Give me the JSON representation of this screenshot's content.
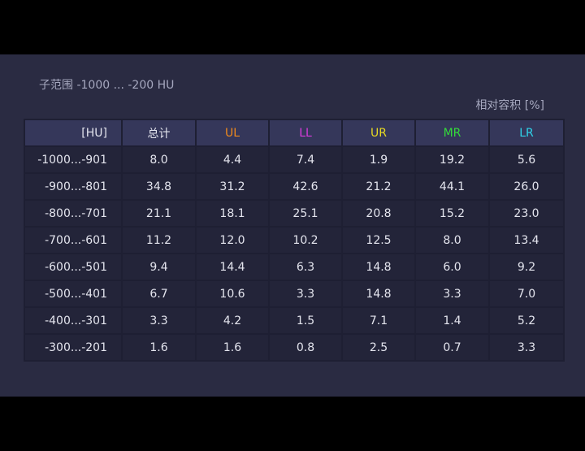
{
  "subrange_label": "子范围 -1000 ... -200 HU",
  "unit_caption": "相对容积 [%]",
  "table": {
    "headers": {
      "range": "[HU]",
      "total": "总计",
      "ul": "UL",
      "ll": "LL",
      "ur": "UR",
      "mr": "MR",
      "lr": "LR"
    },
    "header_colors": {
      "range": "#e4e5ee",
      "total": "#e4e5ee",
      "ul": "#f08a1c",
      "ll": "#d93cdc",
      "ur": "#e8da22",
      "mr": "#34d93a",
      "lr": "#2fd3ea"
    },
    "rows": [
      {
        "range": "-1000...-901",
        "total": "8.0",
        "ul": "4.4",
        "ll": "7.4",
        "ur": "1.9",
        "mr": "19.2",
        "lr": "5.6"
      },
      {
        "range": "-900...-801",
        "total": "34.8",
        "ul": "31.2",
        "ll": "42.6",
        "ur": "21.2",
        "mr": "44.1",
        "lr": "26.0"
      },
      {
        "range": "-800...-701",
        "total": "21.1",
        "ul": "18.1",
        "ll": "25.1",
        "ur": "20.8",
        "mr": "15.2",
        "lr": "23.0"
      },
      {
        "range": "-700...-601",
        "total": "11.2",
        "ul": "12.0",
        "ll": "10.2",
        "ur": "12.5",
        "mr": "8.0",
        "lr": "13.4"
      },
      {
        "range": "-600...-501",
        "total": "9.4",
        "ul": "14.4",
        "ll": "6.3",
        "ur": "14.8",
        "mr": "6.0",
        "lr": "9.2"
      },
      {
        "range": "-500...-401",
        "total": "6.7",
        "ul": "10.6",
        "ll": "3.3",
        "ur": "14.8",
        "mr": "3.3",
        "lr": "7.0"
      },
      {
        "range": "-400...-301",
        "total": "3.3",
        "ul": "4.2",
        "ll": "1.5",
        "ur": "7.1",
        "mr": "1.4",
        "lr": "5.2"
      },
      {
        "range": "-300...-201",
        "total": "1.6",
        "ul": "1.6",
        "ll": "0.8",
        "ur": "2.5",
        "mr": "0.7",
        "lr": "3.3"
      }
    ]
  }
}
